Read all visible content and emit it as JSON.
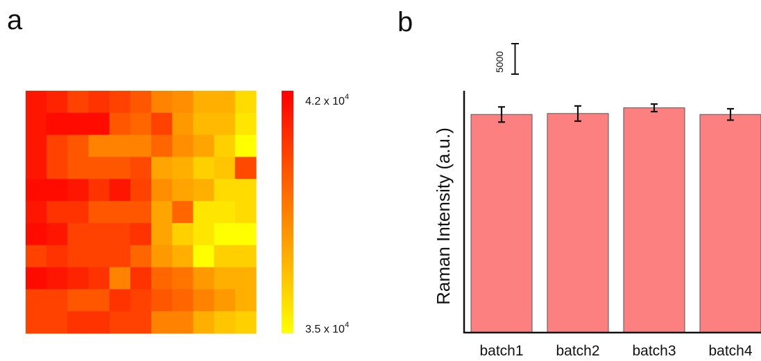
{
  "panels": {
    "a": {
      "letter": "a"
    },
    "b": {
      "letter": "b"
    }
  },
  "chart_data": [
    {
      "type": "heatmap",
      "panel": "a",
      "colormap": [
        "#ffff00",
        "#ff0000"
      ],
      "colorbar": {
        "max": 42000,
        "min": 35000,
        "max_label": "4.2 x 10",
        "max_exp": "4",
        "min_label": "3.5 x 10",
        "min_exp": "4"
      },
      "grid": [
        [
          41400,
          41000,
          40200,
          40600,
          40200,
          39600,
          38400,
          38100,
          37200,
          37200,
          36000
        ],
        [
          41400,
          41700,
          41700,
          41700,
          39600,
          39200,
          40200,
          37800,
          36900,
          36900,
          35700
        ],
        [
          41400,
          40200,
          39600,
          38400,
          38400,
          38400,
          39200,
          38100,
          37500,
          36300,
          35000
        ],
        [
          41400,
          40200,
          39600,
          39600,
          39600,
          40000,
          37500,
          37200,
          36300,
          36600,
          40000
        ],
        [
          41700,
          41700,
          41400,
          40600,
          41400,
          40200,
          38100,
          37500,
          37200,
          36000,
          36000
        ],
        [
          41400,
          40600,
          40600,
          39600,
          39600,
          39600,
          37500,
          39200,
          35700,
          35700,
          36000
        ],
        [
          41700,
          41400,
          40200,
          40200,
          40200,
          40600,
          37500,
          36300,
          35700,
          35000,
          35000
        ],
        [
          40200,
          40600,
          40200,
          40200,
          40200,
          39200,
          37800,
          37200,
          35000,
          36300,
          36300
        ],
        [
          41700,
          41400,
          41000,
          40600,
          38400,
          40600,
          39200,
          38800,
          37800,
          37200,
          37200
        ],
        [
          40200,
          40200,
          39600,
          39600,
          40600,
          40200,
          39600,
          39200,
          38400,
          37800,
          37200
        ],
        [
          40200,
          40200,
          40600,
          40600,
          40200,
          40200,
          38400,
          38400,
          37200,
          36600,
          36300
        ]
      ]
    },
    {
      "type": "bar",
      "panel": "b",
      "categories": [
        "batch1",
        "batch2",
        "batch3",
        "batch4"
      ],
      "values": [
        23000,
        23100,
        23700,
        23000
      ],
      "errors": [
        800,
        800,
        400,
        600
      ],
      "ylabel": "Raman Intensity (a.u.)",
      "ylim": [
        0,
        25500
      ],
      "bar_color": "#fd8080",
      "bar_edge": "#555555",
      "scale_bar": {
        "value": 5000,
        "label": "5000"
      }
    }
  ]
}
